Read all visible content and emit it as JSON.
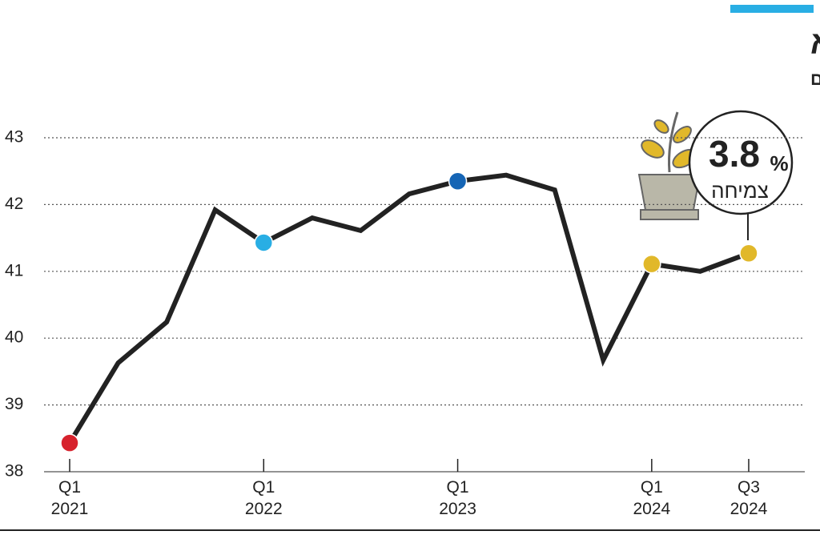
{
  "chart_data": {
    "type": "line",
    "title": "הצמיחה מתאוששת אך רחוקה מהשיא",
    "subtitle": "תוצר מקומי גולמי לנפש, נתונים מנוכי עונתיות, על פי רבעונים, באלפי שקלים",
    "categories": [
      "Q1 2021",
      null,
      null,
      null,
      "Q1 2022",
      null,
      null,
      null,
      "Q1 2023",
      null,
      null,
      null,
      "Q1 2024",
      null,
      "Q3 2024"
    ],
    "series": [
      {
        "color": "#222222",
        "values": [
          38.43,
          39.63,
          40.24,
          41.92,
          41.43,
          41.8,
          41.61,
          42.16,
          42.35,
          42.44,
          42.22,
          39.67,
          41.11,
          41.0,
          41.27
        ]
      }
    ],
    "highlight_colors": [
      "#d7222d",
      null,
      null,
      null,
      "#29aee4",
      null,
      null,
      null,
      "#1565b5",
      null,
      null,
      null,
      "#e1b82a",
      null,
      "#e1b82a"
    ],
    "ylim": [
      38,
      43
    ],
    "yticks": [
      38,
      39,
      40,
      41,
      42,
      43
    ],
    "grid": true,
    "annotation": {
      "value": 3.8,
      "unit": "%",
      "label": "צמיחה"
    }
  }
}
